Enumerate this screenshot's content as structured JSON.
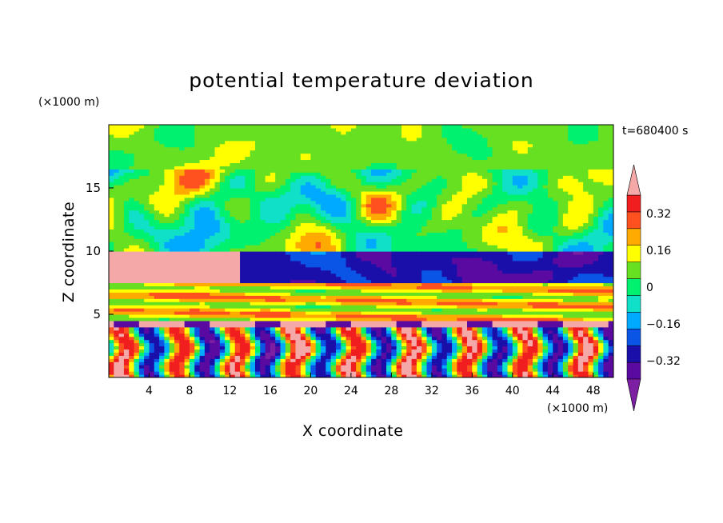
{
  "chart_data": {
    "type": "heatmap",
    "title": "potential temperature deviation",
    "xlabel": "X coordinate",
    "ylabel": "Z coordinate",
    "x_unit": "(×1000 m)",
    "y_unit": "(×1000 m)",
    "time_label": "t=680400 s",
    "xlim": [
      0,
      50
    ],
    "ylim": [
      0,
      20
    ],
    "x_ticks": [
      4,
      8,
      12,
      16,
      20,
      24,
      28,
      32,
      36,
      40,
      44,
      48
    ],
    "y_ticks": [
      5,
      10,
      15
    ],
    "colorbar": {
      "levels": [
        -0.48,
        -0.4,
        -0.32,
        -0.24,
        -0.16,
        -0.08,
        0,
        0.08,
        0.16,
        0.24,
        0.32,
        0.4,
        0.48
      ],
      "tick_labels": [
        "0.32",
        "0.16",
        "0",
        "−0.16",
        "−0.32"
      ],
      "tick_values": [
        0.32,
        0.16,
        0,
        -0.16,
        -0.32
      ],
      "colors": [
        "#7c1fa2",
        "#5a0aa0",
        "#1b0faa",
        "#0a55e6",
        "#00aaff",
        "#10e0c8",
        "#00f070",
        "#66e020",
        "#ffff00",
        "#ffaa00",
        "#ff5020",
        "#f01e1e",
        "#f4a8a8"
      ],
      "extend": "both"
    },
    "z_bands": [
      {
        "z_from": 0,
        "z_to": 4,
        "character": "alternating warm and cold plumes, mixed field"
      },
      {
        "z_from": 4,
        "z_to": 4.6,
        "character": "pink inversion layer with purple patches"
      },
      {
        "z_from": 4.6,
        "z_to": 7.5,
        "character": "yellow-orange-red layered band"
      },
      {
        "z_from": 7.5,
        "z_to": 10,
        "character": "pink warm mass on left, purple cold mass on right"
      },
      {
        "z_from": 10,
        "z_to": 16.5,
        "character": "patchy warm and cold cells"
      },
      {
        "z_from": 16.5,
        "z_to": 20,
        "character": "near-zero field, green and cyan"
      }
    ]
  }
}
